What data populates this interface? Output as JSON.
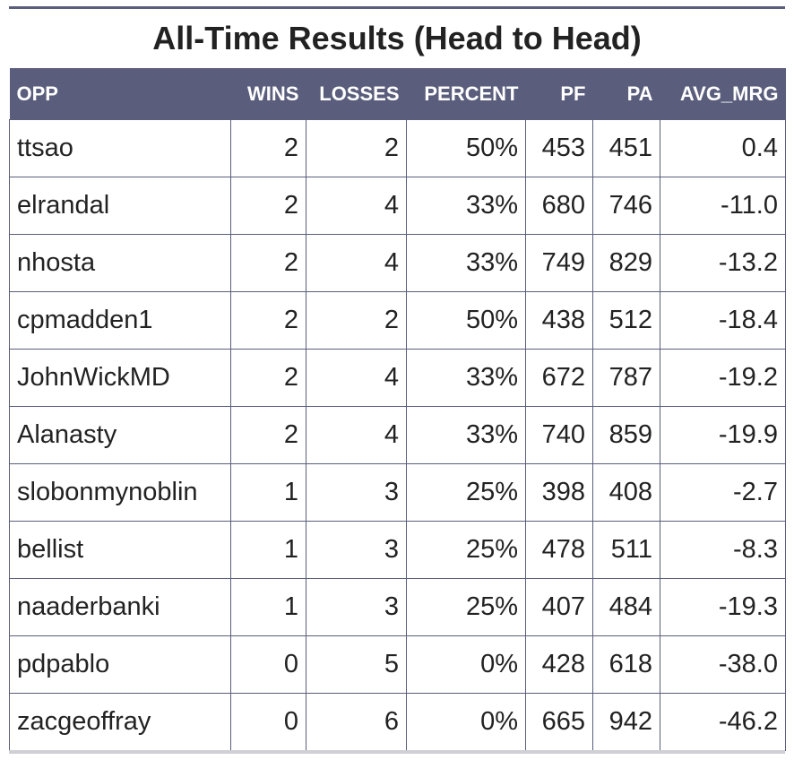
{
  "title": "All-Time Results (Head to Head)",
  "colors": {
    "header_bg": "#5a5e7c",
    "header_text": "#ffffff",
    "border": "#5a5e7c",
    "text": "#222222"
  },
  "columns": [
    "OPP",
    "WINS",
    "LOSSES",
    "PERCENT",
    "PF",
    "PA",
    "AVG_MRG"
  ],
  "rows": [
    [
      "ttsao",
      "2",
      "2",
      "50%",
      "453",
      "451",
      "0.4"
    ],
    [
      "elrandal",
      "2",
      "4",
      "33%",
      "680",
      "746",
      "-11.0"
    ],
    [
      "nhosta",
      "2",
      "4",
      "33%",
      "749",
      "829",
      "-13.2"
    ],
    [
      "cpmadden1",
      "2",
      "2",
      "50%",
      "438",
      "512",
      "-18.4"
    ],
    [
      "JohnWickMD",
      "2",
      "4",
      "33%",
      "672",
      "787",
      "-19.2"
    ],
    [
      "Alanasty",
      "2",
      "4",
      "33%",
      "740",
      "859",
      "-19.9"
    ],
    [
      "slobonmynoblin",
      "1",
      "3",
      "25%",
      "398",
      "408",
      "-2.7"
    ],
    [
      "bellist",
      "1",
      "3",
      "25%",
      "478",
      "511",
      "-8.3"
    ],
    [
      "naaderbanki",
      "1",
      "3",
      "25%",
      "407",
      "484",
      "-19.3"
    ],
    [
      "pdpablo",
      "0",
      "5",
      "0%",
      "428",
      "618",
      "-38.0"
    ],
    [
      "zacgeoffray",
      "0",
      "6",
      "0%",
      "665",
      "942",
      "-46.2"
    ]
  ]
}
